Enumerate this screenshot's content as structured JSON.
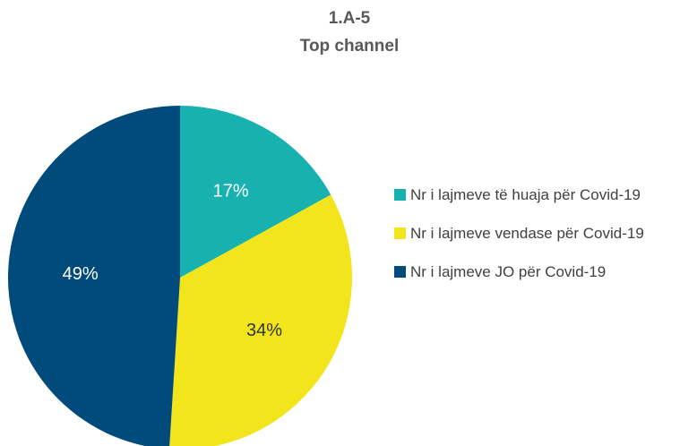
{
  "chart_data": {
    "type": "pie",
    "title": "1.A-5",
    "subtitle": "Top channel",
    "categories": [
      "Nr i lajmeve të huaja për Covid-19",
      "Nr i lajmeve vendase për Covid-19",
      "Nr i lajmeve JO për Covid-19"
    ],
    "values": [
      17,
      34,
      49
    ],
    "value_labels": [
      "17%",
      "34%",
      "49%"
    ],
    "colors": [
      "#17b2b0",
      "#f2e51b",
      "#004a7c"
    ],
    "label_colors": [
      "#ffffff",
      "#333333",
      "#ffffff"
    ],
    "legend": "right"
  }
}
